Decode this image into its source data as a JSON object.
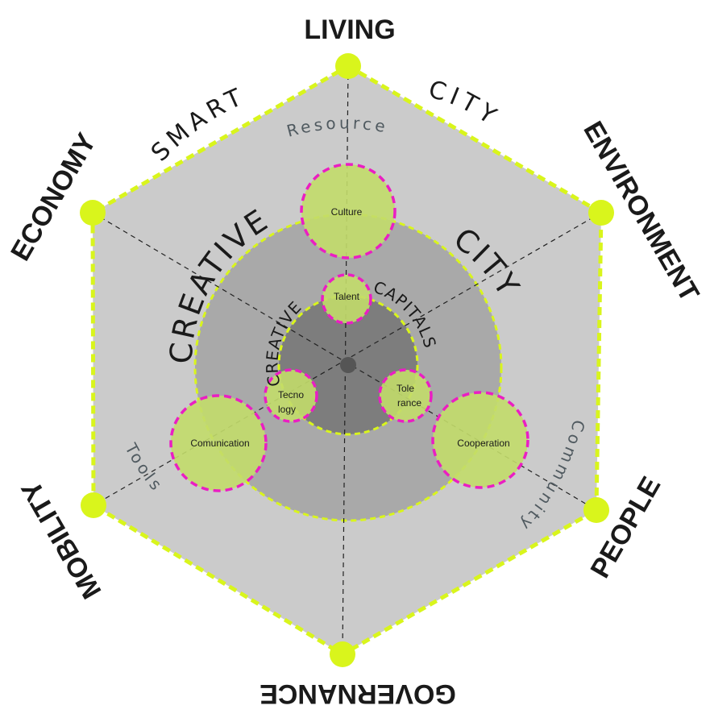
{
  "axes": {
    "living": "LIVING",
    "environment": "ENVIRONMENT",
    "people": "PEOPLE",
    "governance": "GOVERNANCE",
    "mobility": "MOBILITY",
    "economy": "ECONOMY"
  },
  "outer_ring": {
    "smart": "SMART",
    "city": "CITY",
    "resource": "Resource",
    "community": "Community",
    "tools": "Tools"
  },
  "middle_ring": {
    "creative": "CREATIVE",
    "city": "CITY"
  },
  "inner_ring": {
    "creative": "CREATIVE",
    "capitals": "CAPITALS"
  },
  "nodes": {
    "culture": "Culture",
    "talent": "Talent",
    "technology_line1": "Tecno",
    "technology_line2": "logy",
    "tolerance_line1": "Tole",
    "tolerance_line2": "rance",
    "comunication": "Comunication",
    "cooperation": "Cooperation"
  },
  "colors": {
    "accent_green": "#d9f51c",
    "node_fill": "#c2dc6a",
    "magenta": "#ea1ec3",
    "hexagon_fill": "#cbcbcb",
    "middle_fill": "#a9a9a9",
    "inner_fill": "#7d7d7d",
    "center_dot": "#555555"
  }
}
